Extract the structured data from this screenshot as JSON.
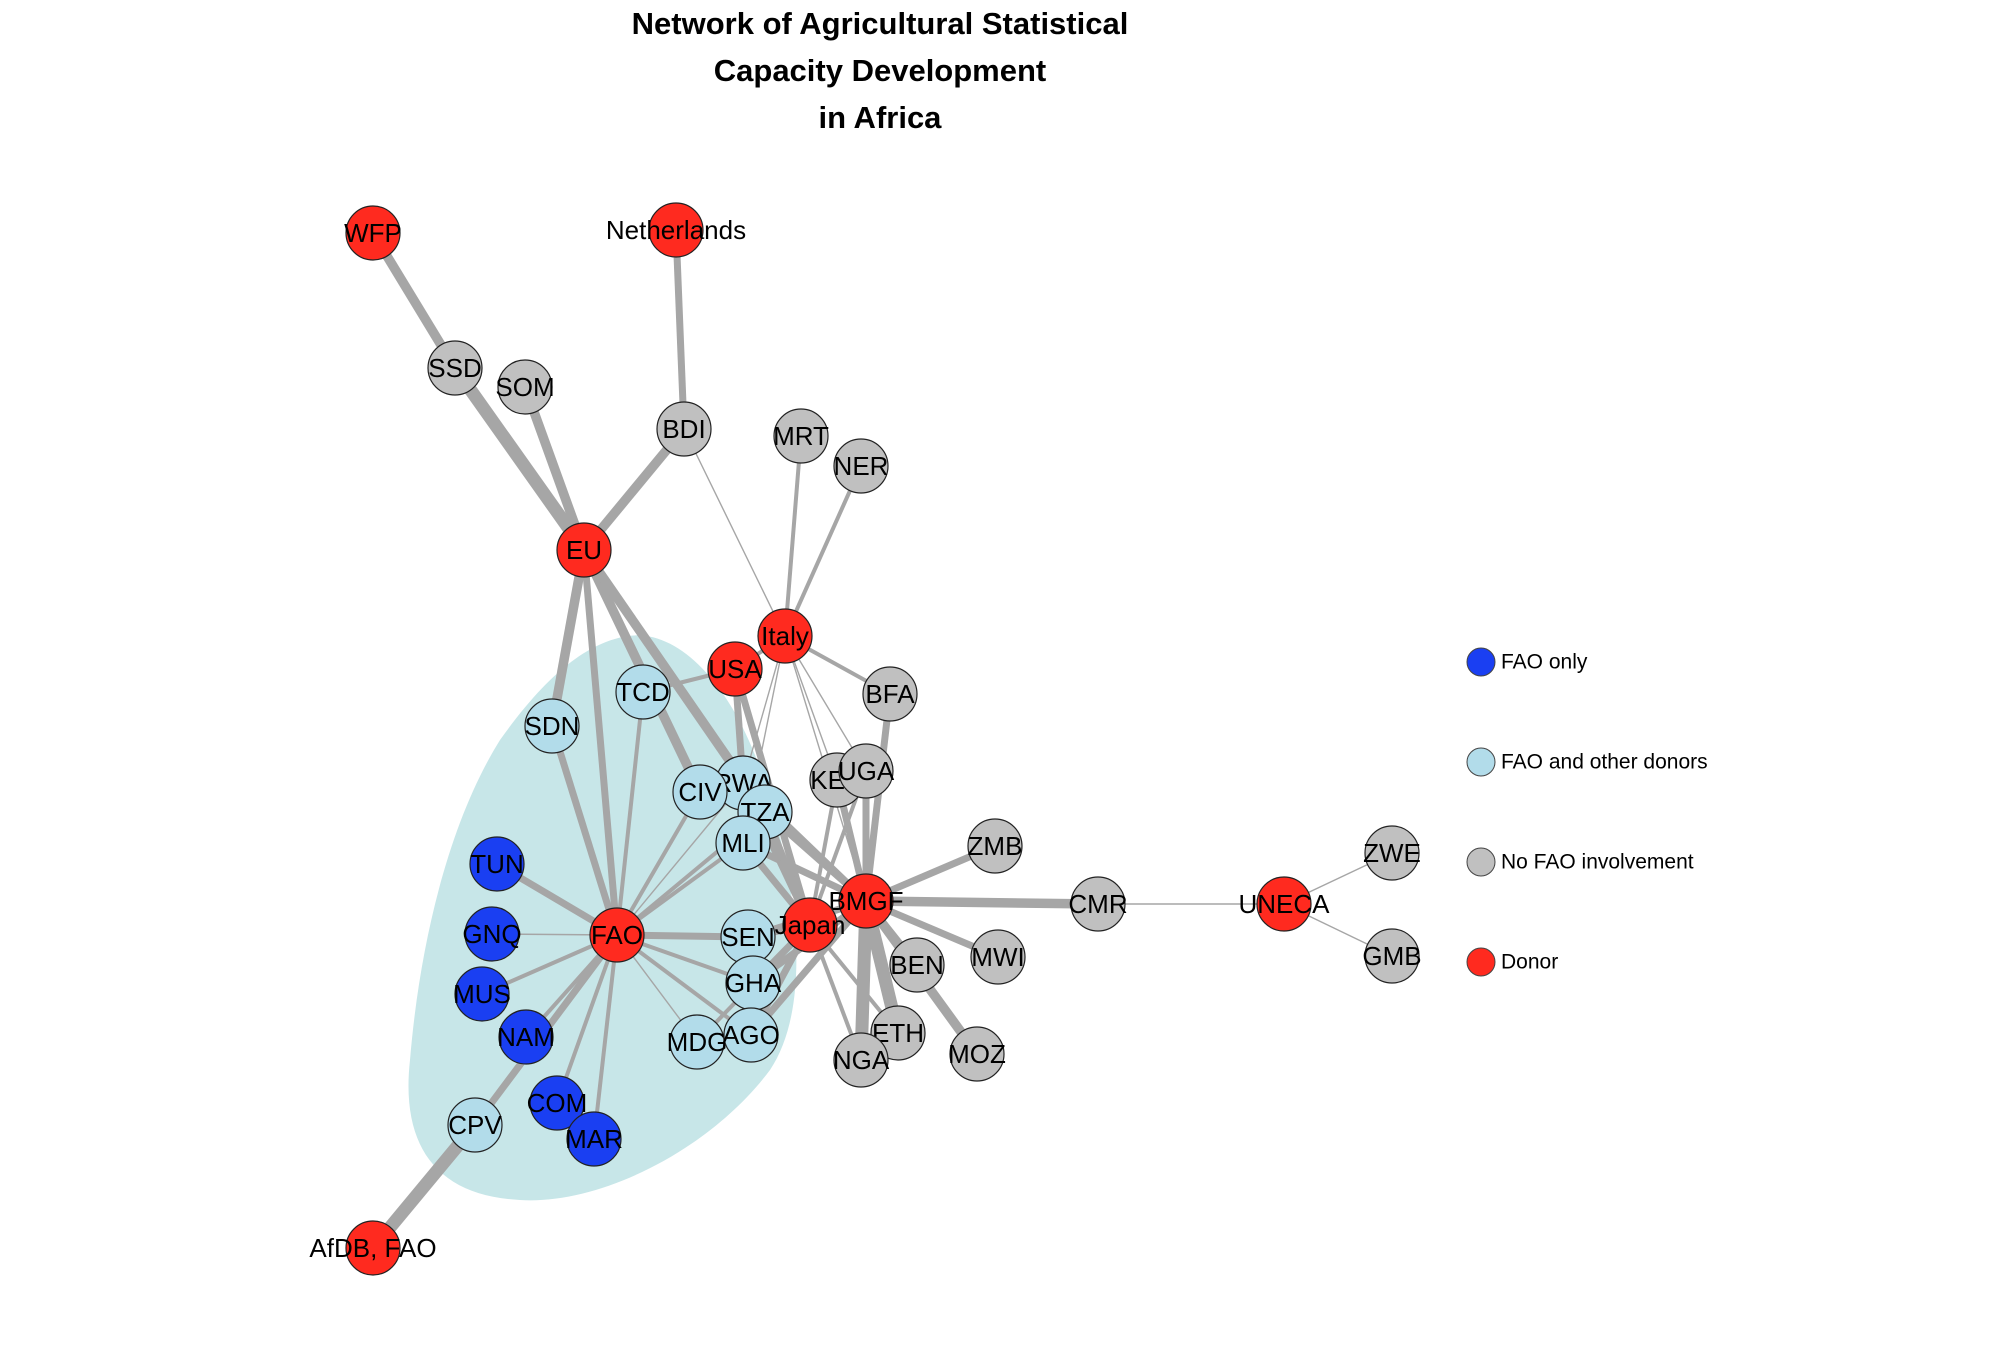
{
  "title_lines": [
    "Network of Agricultural Statistical",
    "Capacity Development",
    "in Africa"
  ],
  "colors": {
    "FAO only": "#1a3ff2",
    "FAO and other donors": "#b2dcea",
    "No FAO involvement": "#c0c0c0",
    "Donor": "#ff2a1f",
    "edge": "#a6a6a6",
    "hull": "#c7e6e8"
  },
  "legend": [
    {
      "label": "FAO only",
      "category": "FAO only"
    },
    {
      "label": "FAO and other donors",
      "category": "FAO and other donors"
    },
    {
      "label": "No FAO involvement",
      "category": "No FAO involvement"
    },
    {
      "label": "Donor",
      "category": "Donor"
    }
  ],
  "nodes": [
    {
      "id": "WFP",
      "label": "WFP",
      "category": "Donor"
    },
    {
      "id": "Netherlands",
      "label": "Netherlands",
      "category": "Donor"
    },
    {
      "id": "SSD",
      "label": "SSD",
      "category": "No FAO involvement"
    },
    {
      "id": "SOM",
      "label": "SOM",
      "category": "No FAO involvement"
    },
    {
      "id": "BDI",
      "label": "BDI",
      "category": "No FAO involvement"
    },
    {
      "id": "MRT",
      "label": "MRT",
      "category": "No FAO involvement"
    },
    {
      "id": "NER",
      "label": "NER",
      "category": "No FAO involvement"
    },
    {
      "id": "EU",
      "label": "EU",
      "category": "Donor"
    },
    {
      "id": "Italy",
      "label": "Italy",
      "category": "Donor"
    },
    {
      "id": "USA",
      "label": "USA",
      "category": "Donor"
    },
    {
      "id": "TCD",
      "label": "TCD",
      "category": "FAO and other donors"
    },
    {
      "id": "BFA",
      "label": "BFA",
      "category": "No FAO involvement"
    },
    {
      "id": "SDN",
      "label": "SDN",
      "category": "FAO and other donors"
    },
    {
      "id": "RWA",
      "label": "RWA",
      "category": "FAO and other donors"
    },
    {
      "id": "CIV",
      "label": "CIV",
      "category": "FAO and other donors"
    },
    {
      "id": "KEN",
      "label": "KEN",
      "category": "No FAO involvement"
    },
    {
      "id": "UGA",
      "label": "UGA",
      "category": "No FAO involvement"
    },
    {
      "id": "TZA",
      "label": "TZA",
      "category": "FAO and other donors"
    },
    {
      "id": "MLI",
      "label": "MLI",
      "category": "FAO and other donors"
    },
    {
      "id": "ZMB",
      "label": "ZMB",
      "category": "No FAO involvement"
    },
    {
      "id": "TUN",
      "label": "TUN",
      "category": "FAO only"
    },
    {
      "id": "BMGF",
      "label": "BMGF",
      "category": "Donor"
    },
    {
      "id": "CMR",
      "label": "CMR",
      "category": "No FAO involvement"
    },
    {
      "id": "UNECA",
      "label": "UNECA",
      "category": "Donor"
    },
    {
      "id": "ZWE",
      "label": "ZWE",
      "category": "No FAO involvement"
    },
    {
      "id": "FAO",
      "label": "FAO",
      "category": "Donor"
    },
    {
      "id": "GNQ",
      "label": "GNQ",
      "category": "FAO only"
    },
    {
      "id": "SEN",
      "label": "SEN",
      "category": "FAO and other donors"
    },
    {
      "id": "Japan",
      "label": "Japan",
      "category": "Donor"
    },
    {
      "id": "BEN",
      "label": "BEN",
      "category": "No FAO involvement"
    },
    {
      "id": "MWI",
      "label": "MWI",
      "category": "No FAO involvement"
    },
    {
      "id": "GMB",
      "label": "GMB",
      "category": "No FAO involvement"
    },
    {
      "id": "MUS",
      "label": "MUS",
      "category": "FAO only"
    },
    {
      "id": "GHA",
      "label": "GHA",
      "category": "FAO and other donors"
    },
    {
      "id": "NAM",
      "label": "NAM",
      "category": "FAO only"
    },
    {
      "id": "MDG",
      "label": "MDG",
      "category": "FAO and other donors"
    },
    {
      "id": "AGO",
      "label": "AGO",
      "category": "FAO and other donors"
    },
    {
      "id": "ETH",
      "label": "ETH",
      "category": "No FAO involvement"
    },
    {
      "id": "NGA",
      "label": "NGA",
      "category": "No FAO involvement"
    },
    {
      "id": "MOZ",
      "label": "MOZ",
      "category": "No FAO involvement"
    },
    {
      "id": "COM",
      "label": "COM",
      "category": "FAO only"
    },
    {
      "id": "CPV",
      "label": "CPV",
      "category": "FAO and other donors"
    },
    {
      "id": "MAR",
      "label": "MAR",
      "category": "FAO only"
    },
    {
      "id": "AfDB, FAO",
      "label": "AfDB, FAO",
      "category": "Donor"
    }
  ],
  "edges": [
    {
      "source": "WFP",
      "target": "SSD",
      "weight": 4
    },
    {
      "source": "SSD",
      "target": "EU",
      "weight": 5
    },
    {
      "source": "SOM",
      "target": "EU",
      "weight": 4
    },
    {
      "source": "BDI",
      "target": "EU",
      "weight": 4
    },
    {
      "source": "BDI",
      "target": "Netherlands",
      "weight": 3
    },
    {
      "source": "BDI",
      "target": "Italy",
      "weight": 1
    },
    {
      "source": "MRT",
      "target": "Italy",
      "weight": 2
    },
    {
      "source": "NER",
      "target": "Italy",
      "weight": 2
    },
    {
      "source": "EU",
      "target": "SDN",
      "weight": 4
    },
    {
      "source": "EU",
      "target": "FAO",
      "weight": 3
    },
    {
      "source": "EU",
      "target": "CIV",
      "weight": 4
    },
    {
      "source": "EU",
      "target": "TZA",
      "weight": 4
    },
    {
      "source": "Italy",
      "target": "USA",
      "weight": 2
    },
    {
      "source": "Italy",
      "target": "BFA",
      "weight": 2
    },
    {
      "source": "Italy",
      "target": "RWA",
      "weight": 1
    },
    {
      "source": "Italy",
      "target": "KEN",
      "weight": 1
    },
    {
      "source": "Italy",
      "target": "UGA",
      "weight": 1
    },
    {
      "source": "Italy",
      "target": "MLI",
      "weight": 1
    },
    {
      "source": "Italy",
      "target": "BMGF",
      "weight": 1
    },
    {
      "source": "USA",
      "target": "TCD",
      "weight": 2
    },
    {
      "source": "USA",
      "target": "RWA",
      "weight": 3
    },
    {
      "source": "USA",
      "target": "Japan",
      "weight": 3
    },
    {
      "source": "TCD",
      "target": "FAO",
      "weight": 2
    },
    {
      "source": "SDN",
      "target": "FAO",
      "weight": 3
    },
    {
      "source": "BFA",
      "target": "BMGF",
      "weight": 3
    },
    {
      "source": "TUN",
      "target": "FAO",
      "weight": 3
    },
    {
      "source": "GNQ",
      "target": "FAO",
      "weight": 1
    },
    {
      "source": "MUS",
      "target": "FAO",
      "weight": 2
    },
    {
      "source": "NAM",
      "target": "FAO",
      "weight": 2
    },
    {
      "source": "COM",
      "target": "FAO",
      "weight": 2
    },
    {
      "source": "MAR",
      "target": "FAO",
      "weight": 2
    },
    {
      "source": "CPV",
      "target": "FAO",
      "weight": 3
    },
    {
      "source": "CPV",
      "target": "AfDB, FAO",
      "weight": 5
    },
    {
      "source": "FAO",
      "target": "CIV",
      "weight": 2
    },
    {
      "source": "FAO",
      "target": "RWA",
      "weight": 1
    },
    {
      "source": "FAO",
      "target": "TZA",
      "weight": 2
    },
    {
      "source": "FAO",
      "target": "MLI",
      "weight": 2
    },
    {
      "source": "FAO",
      "target": "SEN",
      "weight": 3
    },
    {
      "source": "FAO",
      "target": "GHA",
      "weight": 2
    },
    {
      "source": "FAO",
      "target": "MDG",
      "weight": 1
    },
    {
      "source": "FAO",
      "target": "AGO",
      "weight": 2
    },
    {
      "source": "BMGF",
      "target": "RWA",
      "weight": 3
    },
    {
      "source": "BMGF",
      "target": "TZA",
      "weight": 3
    },
    {
      "source": "BMGF",
      "target": "MLI",
      "weight": 3
    },
    {
      "source": "BMGF",
      "target": "KEN",
      "weight": 3
    },
    {
      "source": "BMGF",
      "target": "UGA",
      "weight": 3
    },
    {
      "source": "BMGF",
      "target": "ZMB",
      "weight": 3
    },
    {
      "source": "BMGF",
      "target": "CMR",
      "weight": 4
    },
    {
      "source": "BMGF",
      "target": "SEN",
      "weight": 3
    },
    {
      "source": "BMGF",
      "target": "BEN",
      "weight": 3
    },
    {
      "source": "BMGF",
      "target": "MWI",
      "weight": 3
    },
    {
      "source": "BMGF",
      "target": "ETH",
      "weight": 5
    },
    {
      "source": "BMGF",
      "target": "NGA",
      "weight": 5
    },
    {
      "source": "BMGF",
      "target": "MOZ",
      "weight": 4
    },
    {
      "source": "BMGF",
      "target": "GHA",
      "weight": 3
    },
    {
      "source": "BMGF",
      "target": "AGO",
      "weight": 3
    },
    {
      "source": "CMR",
      "target": "UNECA",
      "weight": 1
    },
    {
      "source": "UNECA",
      "target": "ZWE",
      "weight": 1
    },
    {
      "source": "UNECA",
      "target": "GMB",
      "weight": 1
    },
    {
      "source": "Japan",
      "target": "RWA",
      "weight": 3
    },
    {
      "source": "Japan",
      "target": "TZA",
      "weight": 3
    },
    {
      "source": "Japan",
      "target": "MLI",
      "weight": 3
    },
    {
      "source": "Japan",
      "target": "SEN",
      "weight": 3
    },
    {
      "source": "Japan",
      "target": "GHA",
      "weight": 3
    },
    {
      "source": "Japan",
      "target": "MDG",
      "weight": 2
    },
    {
      "source": "Japan",
      "target": "AGO",
      "weight": 3
    },
    {
      "source": "Japan",
      "target": "ETH",
      "weight": 2
    },
    {
      "source": "Japan",
      "target": "NGA",
      "weight": 2
    },
    {
      "source": "KEN",
      "target": "Japan",
      "weight": 2
    },
    {
      "source": "UGA",
      "target": "Japan",
      "weight": 2
    }
  ]
}
